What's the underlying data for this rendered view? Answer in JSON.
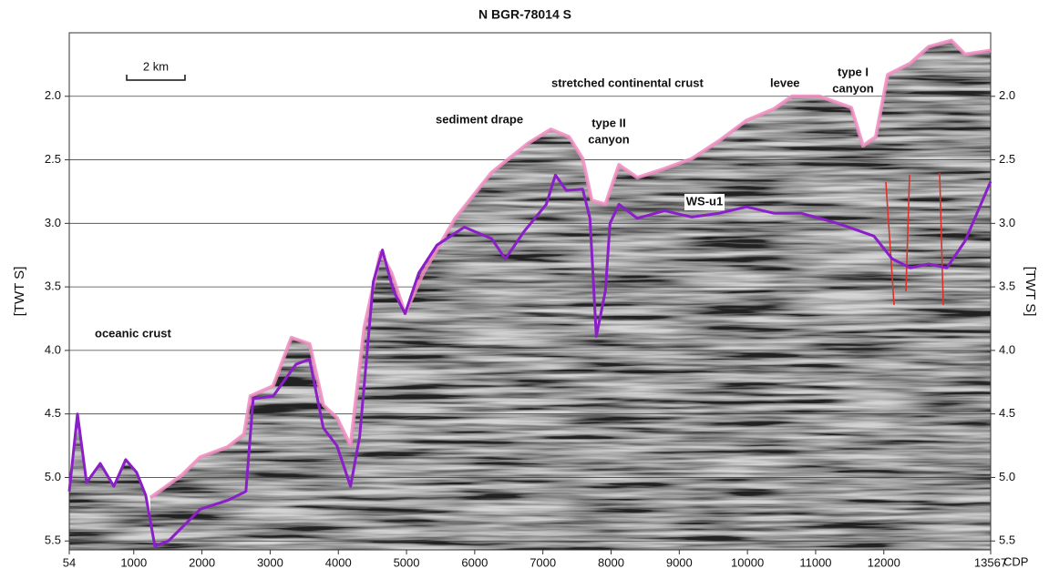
{
  "chart_data": {
    "type": "line",
    "title": "N BGR-78014 S",
    "x_label": "CDP",
    "y_label": "[TWT S]",
    "xlim": [
      54,
      13567
    ],
    "ylim": [
      1.5,
      5.57
    ],
    "y_inverted": true,
    "grid": true,
    "xticks": [
      54,
      1000,
      2000,
      3000,
      4000,
      5000,
      6000,
      7000,
      8000,
      9000,
      10000,
      11000,
      12000,
      13567
    ],
    "yticks": [
      {
        "value": 2,
        "label": "2.0"
      },
      2.5,
      {
        "value": 3,
        "label": "3.0"
      },
      3.5,
      {
        "value": 4,
        "label": "4.0"
      },
      4.5,
      {
        "value": 5,
        "label": "5.0"
      },
      5.5
    ],
    "series": [
      {
        "color": "#f08cc0",
        "x": [
          1242,
          1709,
          1976,
          2377,
          2617,
          2711,
          3044,
          3311,
          3578,
          3779,
          3979,
          4179,
          4380,
          4620,
          4780,
          4980,
          5247,
          5714,
          6248,
          6782,
          7116,
          7383,
          7583,
          7717,
          7917,
          8117,
          8384,
          8785,
          9185,
          9586,
          9986,
          10387,
          10654,
          11054,
          11522,
          11695,
          11882,
          12056,
          12390,
          12657,
          12990,
          13190,
          13567
        ],
        "values": [
          5.16,
          4.98,
          4.84,
          4.76,
          4.66,
          4.36,
          4.28,
          3.9,
          3.95,
          4.43,
          4.53,
          4.75,
          3.82,
          3.23,
          3.39,
          3.71,
          3.39,
          2.96,
          2.6,
          2.37,
          2.26,
          2.32,
          2.49,
          2.82,
          2.85,
          2.54,
          2.64,
          2.57,
          2.49,
          2.35,
          2.19,
          2.1,
          2.0,
          2.0,
          2.09,
          2.39,
          2.32,
          1.83,
          1.74,
          1.61,
          1.56,
          1.67,
          1.64
        ]
      },
      {
        "name": "WS-u1",
        "color": "#8a1fc8",
        "x": [
          54,
          174,
          308,
          508,
          708,
          882,
          1042,
          1175,
          1309,
          1509,
          1976,
          2377,
          2644,
          2751,
          3044,
          3378,
          3578,
          3779,
          3979,
          4179,
          4313,
          4513,
          4647,
          4807,
          4980,
          5180,
          5447,
          5848,
          6248,
          6449,
          6716,
          7050,
          7183,
          7343,
          7583,
          7690,
          7784,
          7917,
          7984,
          8117,
          8384,
          8785,
          9185,
          9586,
          9986,
          10387,
          10787,
          11321,
          11855,
          12123,
          12390,
          12657,
          12924,
          13190,
          13567
        ],
        "values": [
          5.11,
          4.5,
          5.04,
          4.89,
          5.07,
          4.86,
          4.96,
          5.14,
          5.54,
          5.5,
          5.25,
          5.18,
          5.11,
          4.38,
          4.36,
          4.11,
          4.07,
          4.61,
          4.75,
          5.07,
          4.68,
          3.46,
          3.21,
          3.53,
          3.71,
          3.39,
          3.17,
          3.03,
          3.12,
          3.28,
          3.07,
          2.85,
          2.62,
          2.74,
          2.73,
          2.96,
          3.89,
          3.53,
          3.0,
          2.85,
          2.96,
          2.9,
          2.95,
          2.92,
          2.87,
          2.92,
          2.92,
          3.0,
          3.1,
          3.28,
          3.35,
          3.32,
          3.35,
          3.14,
          2.67
        ]
      }
    ],
    "annotations": [
      {
        "lines": [
          "oceanic crust"
        ]
      },
      {
        "lines": [
          "sediment drape"
        ]
      },
      {
        "lines": [
          "type II",
          "canyon"
        ]
      },
      {
        "lines": [
          "stretched continental crust"
        ]
      },
      {
        "lines": [
          "levee"
        ]
      },
      {
        "lines": [
          "type I",
          "canyon"
        ]
      }
    ],
    "scale_bar": "2 km"
  }
}
